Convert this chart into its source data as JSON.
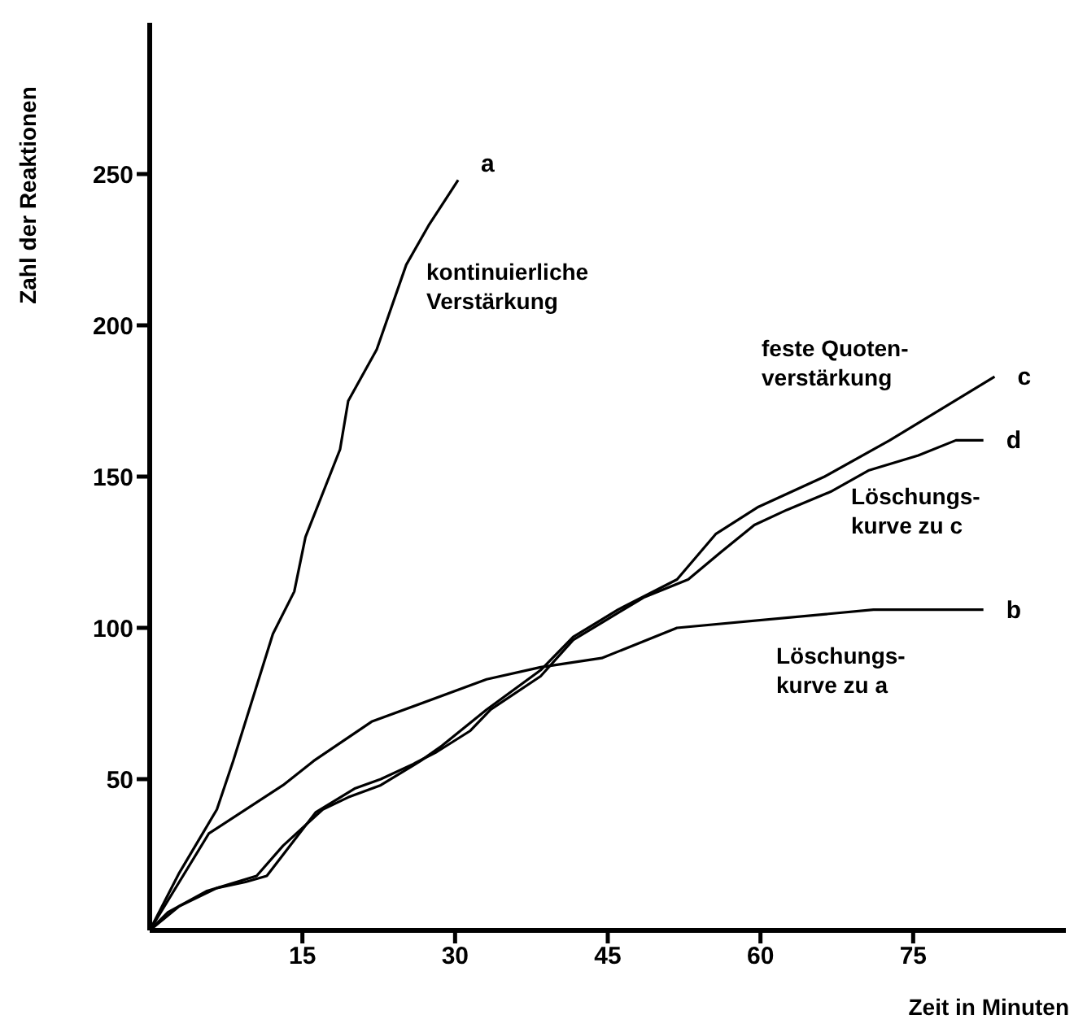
{
  "chart_data": {
    "type": "line",
    "xlabel": "Zeit in Minuten",
    "ylabel": "Zahl der Reaktionen",
    "xlim": [
      0,
      90
    ],
    "ylim": [
      0,
      300
    ],
    "xticks": [
      15,
      30,
      45,
      60,
      75
    ],
    "yticks": [
      50,
      100,
      150,
      200,
      250
    ],
    "grid": false,
    "legend": false,
    "line_style": "solid",
    "series": [
      {
        "name": "a",
        "color": "#000000",
        "x": [
          0,
          2.9,
          6.6,
          8.2,
          12.1,
          14.2,
          15.3,
          18.7,
          19.5,
          22.3,
          25.2,
          27.4,
          30.3
        ],
        "values": [
          0,
          19,
          40,
          56,
          98,
          112,
          130,
          159,
          175,
          192,
          220,
          233,
          248
        ]
      },
      {
        "name": "b",
        "color": "#000000",
        "x": [
          0,
          5.8,
          13.1,
          16.1,
          21.8,
          33.1,
          38.4,
          44.4,
          51.8,
          71.1,
          81.9
        ],
        "values": [
          0,
          32,
          48,
          56,
          69,
          83,
          87,
          90,
          100,
          106,
          106
        ]
      },
      {
        "name": "c",
        "color": "#000000",
        "x": [
          0,
          1.8,
          5.6,
          10.5,
          13.1,
          17,
          19.5,
          22.7,
          26.6,
          28.7,
          33.1,
          38.4,
          41.6,
          46,
          51.8,
          55.6,
          59.8,
          66.3,
          72.7,
          83
        ],
        "values": [
          0,
          6,
          13,
          18,
          28,
          40,
          44,
          48,
          56,
          61,
          73,
          86,
          97,
          106,
          116,
          131,
          140,
          150,
          162,
          183
        ]
      },
      {
        "name": "d",
        "color": "#000000",
        "x": [
          0,
          2.9,
          6.6,
          9.4,
          11.5,
          16.3,
          20.2,
          22.7,
          25.9,
          28.2,
          31.5,
          33.5,
          38.4,
          41.6,
          48.5,
          52.9,
          56.1,
          59.4,
          62.6,
          66.9,
          70.6,
          75.5,
          79.2,
          81.9
        ],
        "values": [
          0,
          8,
          14,
          16,
          18,
          39,
          47,
          50,
          55,
          59,
          66,
          73,
          84,
          96,
          110,
          116,
          125,
          134,
          139,
          145,
          152,
          157,
          162,
          162
        ]
      }
    ],
    "annotations": [
      "kontinuierliche\nVerstärkung",
      "feste Quoten-\nverstärkung",
      "Löschungs-\nkurve zu c",
      "Löschungs-\nkurve zu a"
    ]
  }
}
